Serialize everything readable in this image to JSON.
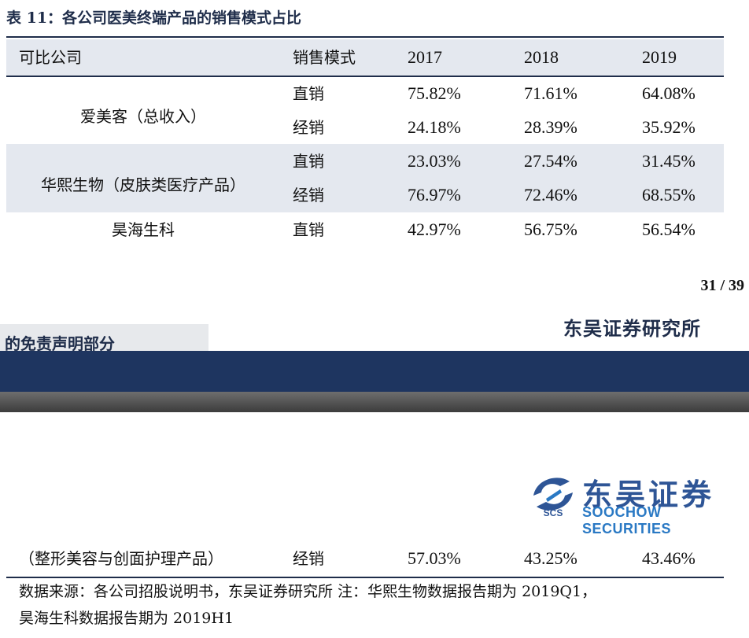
{
  "title": "表 11：各公司医美终端产品的销售模式占比",
  "header": [
    "可比公司",
    "销售模式",
    "2017",
    "2018",
    "2019"
  ],
  "rows": [
    {
      "company": "爱美客（总收入）",
      "lines": [
        {
          "mode": "直销",
          "y2017": "75.82%",
          "y2018": "71.61%",
          "y2019": "64.08%"
        },
        {
          "mode": "经销",
          "y2017": "24.18%",
          "y2018": "28.39%",
          "y2019": "35.92%"
        }
      ]
    },
    {
      "company": "华熙生物（皮肤类医疗产品）",
      "lines": [
        {
          "mode": "直销",
          "y2017": "23.03%",
          "y2018": "27.54%",
          "y2019": "31.45%"
        },
        {
          "mode": "经销",
          "y2017": "76.97%",
          "y2018": "72.46%",
          "y2019": "68.55%"
        }
      ]
    },
    {
      "company": "昊海生科",
      "lines": [
        {
          "mode": "直销",
          "y2017": "42.97%",
          "y2018": "56.75%",
          "y2019": "56.54%"
        }
      ]
    }
  ],
  "continued_row": {
    "company": "（整形美容与创面护理产品）",
    "mode": "经销",
    "y2017": "57.03%",
    "y2018": "43.25%",
    "y2019": "43.46%"
  },
  "page_number": "31 / 39",
  "brand_name": "东吴证券研究所",
  "disclaimer_tab": "的免责声明部分",
  "logo": {
    "cn": "东吴证券",
    "en": "SOOCHOW SECURITIES",
    "mark": "SCS"
  },
  "source_line1": "数据来源：各公司招股说明书，东吴证券研究所 注：华熙生物数据报告期为 2019Q1，",
  "source_line2": "昊海生科数据报告期为 2019H1",
  "colors": {
    "navy": "#1e3560",
    "band": "#e4e8ef",
    "logo_blue": "#2e5596"
  }
}
